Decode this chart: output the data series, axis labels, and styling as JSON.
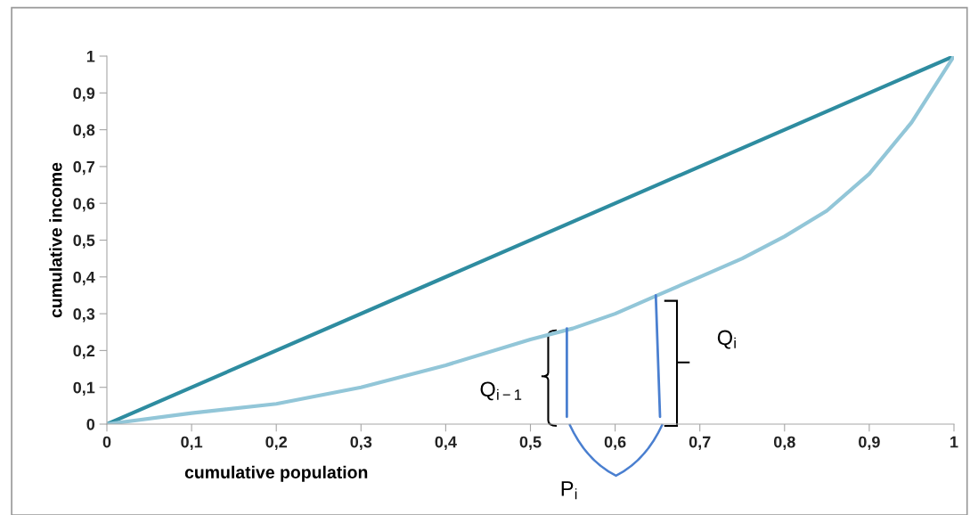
{
  "chart_data": {
    "type": "line",
    "xlabel": "cumulative population",
    "ylabel": "cumulative income",
    "xlim": [
      0,
      1
    ],
    "ylim": [
      0,
      1
    ],
    "xticks": [
      0,
      {
        "value": 0.1,
        "label": "0,1"
      },
      {
        "value": 0.2,
        "label": "0,2"
      },
      {
        "value": 0.3,
        "label": "0,3"
      },
      {
        "value": 0.4,
        "label": "0,4"
      },
      {
        "value": 0.5,
        "label": "0,5"
      },
      {
        "value": 0.6,
        "label": "0,6"
      },
      {
        "value": 0.7,
        "label": "0,7"
      },
      {
        "value": 0.8,
        "label": "0,8"
      },
      {
        "value": 0.9,
        "label": "0,9"
      },
      1
    ],
    "yticks": [
      0,
      {
        "value": 0.1,
        "label": "0,1"
      },
      {
        "value": 0.2,
        "label": "0,2"
      },
      {
        "value": 0.3,
        "label": "0,3"
      },
      {
        "value": 0.4,
        "label": "0,4"
      },
      {
        "value": 0.5,
        "label": "0,5"
      },
      {
        "value": 0.6,
        "label": "0,6"
      },
      {
        "value": 0.7,
        "label": "0,7"
      },
      {
        "value": 0.8,
        "label": "0,8"
      },
      {
        "value": 0.9,
        "label": "0,9"
      },
      1
    ],
    "grid": false,
    "legend": false,
    "marker": "none",
    "line_style": "solid",
    "series": [
      {
        "color": "#2e8ca0",
        "x": [
          0,
          1
        ],
        "values": [
          0,
          1
        ]
      },
      {
        "color": "#92c6d8",
        "x": [
          0,
          0.1,
          0.2,
          0.3,
          0.4,
          0.5,
          0.55,
          0.6,
          0.65,
          0.7,
          0.75,
          0.8,
          0.85,
          0.9,
          0.95,
          1
        ],
        "values": [
          0,
          0.03,
          0.055,
          0.1,
          0.16,
          0.23,
          0.26,
          0.3,
          0.35,
          0.4,
          0.45,
          0.51,
          0.58,
          0.68,
          0.82,
          1
        ]
      },
      {
        "color": "#4a7fd0",
        "x": [
          0.543,
          0.543
        ],
        "values": [
          0.02,
          0.26
        ]
      },
      {
        "color": "#4a7fd0",
        "x": [
          0.648,
          0.653
        ],
        "values": [
          0.35,
          0.02
        ]
      }
    ],
    "annotations": [
      "Q$_{i−1}$",
      "Q$_{i}$",
      "P$_{i}$"
    ]
  }
}
